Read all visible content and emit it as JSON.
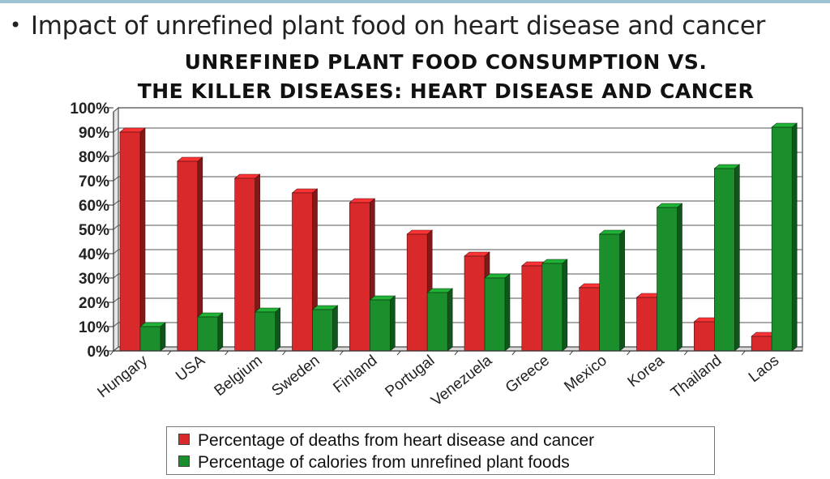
{
  "slide": {
    "bullet_text": "Impact of unrefined plant food on heart disease and cancer"
  },
  "chart_data": {
    "type": "bar",
    "title_line1": "UNREFINED PLANT FOOD CONSUMPTION VS.",
    "title_line2": "THE KILLER DISEASES: HEART DISEASE AND CANCER",
    "categories": [
      "Hungary",
      "USA",
      "Belgium",
      "Sweden",
      "Finland",
      "Portugal",
      "Venezuela",
      "Greece",
      "Mexico",
      "Korea",
      "Thailand",
      "Laos"
    ],
    "series": [
      {
        "name": "Percentage of deaths from heart disease and cancer",
        "color": "#d9292a",
        "values": [
          90,
          78,
          71,
          65,
          61,
          48,
          39,
          35,
          26,
          22,
          12,
          6
        ]
      },
      {
        "name": "Percentage of calories from unrefined plant foods",
        "color": "#1a8f2c",
        "values": [
          10,
          14,
          16,
          17,
          21,
          24,
          30,
          36,
          48,
          59,
          75,
          92
        ]
      }
    ],
    "y_ticks": [
      "0%",
      "10%",
      "20%",
      "30%",
      "40%",
      "50%",
      "60%",
      "70%",
      "80%",
      "90%",
      "100%"
    ],
    "ylim": [
      0,
      100
    ],
    "grid": true,
    "legend_position": "bottom"
  }
}
